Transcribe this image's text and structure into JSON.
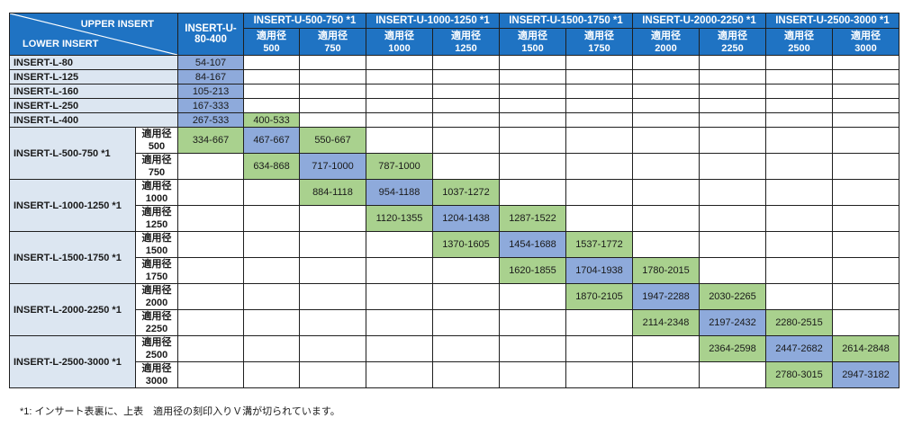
{
  "header": {
    "corner_upper": "UPPER INSERT",
    "corner_lower": "LOWER INSERT",
    "u80_line1": "INSERT-U-",
    "u80_line2": "80-400",
    "groups": [
      "INSERT-U-500-750 *1",
      "INSERT-U-1000-1250 *1",
      "INSERT-U-1500-1750 *1",
      "INSERT-U-2000-2250 *1",
      "INSERT-U-2500-3000 *1"
    ],
    "sub_kanji": "適用径",
    "sub_sizes": [
      "500",
      "750",
      "1000",
      "1250",
      "1500",
      "1750",
      "2000",
      "2250",
      "2500",
      "3000"
    ]
  },
  "single_rows": [
    {
      "label": "INSERT-L-80",
      "cells": [
        {
          "v": "54-107",
          "c": "blue"
        },
        {
          "v": "",
          "c": ""
        },
        {
          "v": "",
          "c": ""
        },
        {
          "v": "",
          "c": ""
        },
        {
          "v": "",
          "c": ""
        },
        {
          "v": "",
          "c": ""
        },
        {
          "v": "",
          "c": ""
        },
        {
          "v": "",
          "c": ""
        },
        {
          "v": "",
          "c": ""
        },
        {
          "v": "",
          "c": ""
        },
        {
          "v": "",
          "c": ""
        }
      ]
    },
    {
      "label": "INSERT-L-125",
      "cells": [
        {
          "v": "84-167",
          "c": "blue"
        },
        {
          "v": "",
          "c": ""
        },
        {
          "v": "",
          "c": ""
        },
        {
          "v": "",
          "c": ""
        },
        {
          "v": "",
          "c": ""
        },
        {
          "v": "",
          "c": ""
        },
        {
          "v": "",
          "c": ""
        },
        {
          "v": "",
          "c": ""
        },
        {
          "v": "",
          "c": ""
        },
        {
          "v": "",
          "c": ""
        },
        {
          "v": "",
          "c": ""
        }
      ]
    },
    {
      "label": "INSERT-L-160",
      "cells": [
        {
          "v": "105-213",
          "c": "blue"
        },
        {
          "v": "",
          "c": ""
        },
        {
          "v": "",
          "c": ""
        },
        {
          "v": "",
          "c": ""
        },
        {
          "v": "",
          "c": ""
        },
        {
          "v": "",
          "c": ""
        },
        {
          "v": "",
          "c": ""
        },
        {
          "v": "",
          "c": ""
        },
        {
          "v": "",
          "c": ""
        },
        {
          "v": "",
          "c": ""
        },
        {
          "v": "",
          "c": ""
        }
      ]
    },
    {
      "label": "INSERT-L-250",
      "cells": [
        {
          "v": "167-333",
          "c": "blue"
        },
        {
          "v": "",
          "c": ""
        },
        {
          "v": "",
          "c": ""
        },
        {
          "v": "",
          "c": ""
        },
        {
          "v": "",
          "c": ""
        },
        {
          "v": "",
          "c": ""
        },
        {
          "v": "",
          "c": ""
        },
        {
          "v": "",
          "c": ""
        },
        {
          "v": "",
          "c": ""
        },
        {
          "v": "",
          "c": ""
        },
        {
          "v": "",
          "c": ""
        }
      ]
    },
    {
      "label": "INSERT-L-400",
      "cells": [
        {
          "v": "267-533",
          "c": "blue"
        },
        {
          "v": "400-533",
          "c": "green"
        },
        {
          "v": "",
          "c": ""
        },
        {
          "v": "",
          "c": ""
        },
        {
          "v": "",
          "c": ""
        },
        {
          "v": "",
          "c": ""
        },
        {
          "v": "",
          "c": ""
        },
        {
          "v": "",
          "c": ""
        },
        {
          "v": "",
          "c": ""
        },
        {
          "v": "",
          "c": ""
        },
        {
          "v": "",
          "c": ""
        }
      ]
    }
  ],
  "group_rows": [
    {
      "label": "INSERT-L-500-750 *1",
      "subs": [
        {
          "size": "500",
          "cells": [
            {
              "v": "334-667",
              "c": "green"
            },
            {
              "v": "467-667",
              "c": "blue"
            },
            {
              "v": "550-667",
              "c": "green"
            },
            {
              "v": "",
              "c": ""
            },
            {
              "v": "",
              "c": ""
            },
            {
              "v": "",
              "c": ""
            },
            {
              "v": "",
              "c": ""
            },
            {
              "v": "",
              "c": ""
            },
            {
              "v": "",
              "c": ""
            },
            {
              "v": "",
              "c": ""
            },
            {
              "v": "",
              "c": ""
            }
          ]
        },
        {
          "size": "750",
          "cells": [
            {
              "v": "",
              "c": ""
            },
            {
              "v": "634-868",
              "c": "green"
            },
            {
              "v": "717-1000",
              "c": "blue"
            },
            {
              "v": "787-1000",
              "c": "green"
            },
            {
              "v": "",
              "c": ""
            },
            {
              "v": "",
              "c": ""
            },
            {
              "v": "",
              "c": ""
            },
            {
              "v": "",
              "c": ""
            },
            {
              "v": "",
              "c": ""
            },
            {
              "v": "",
              "c": ""
            },
            {
              "v": "",
              "c": ""
            }
          ]
        }
      ]
    },
    {
      "label": "INSERT-L-1000-1250 *1",
      "subs": [
        {
          "size": "1000",
          "cells": [
            {
              "v": "",
              "c": ""
            },
            {
              "v": "",
              "c": ""
            },
            {
              "v": "884-1118",
              "c": "green"
            },
            {
              "v": "954-1188",
              "c": "blue"
            },
            {
              "v": "1037-1272",
              "c": "green"
            },
            {
              "v": "",
              "c": ""
            },
            {
              "v": "",
              "c": ""
            },
            {
              "v": "",
              "c": ""
            },
            {
              "v": "",
              "c": ""
            },
            {
              "v": "",
              "c": ""
            },
            {
              "v": "",
              "c": ""
            }
          ]
        },
        {
          "size": "1250",
          "cells": [
            {
              "v": "",
              "c": ""
            },
            {
              "v": "",
              "c": ""
            },
            {
              "v": "",
              "c": ""
            },
            {
              "v": "1120-1355",
              "c": "green"
            },
            {
              "v": "1204-1438",
              "c": "blue"
            },
            {
              "v": "1287-1522",
              "c": "green"
            },
            {
              "v": "",
              "c": ""
            },
            {
              "v": "",
              "c": ""
            },
            {
              "v": "",
              "c": ""
            },
            {
              "v": "",
              "c": ""
            },
            {
              "v": "",
              "c": ""
            }
          ]
        }
      ]
    },
    {
      "label": "INSERT-L-1500-1750 *1",
      "subs": [
        {
          "size": "1500",
          "cells": [
            {
              "v": "",
              "c": ""
            },
            {
              "v": "",
              "c": ""
            },
            {
              "v": "",
              "c": ""
            },
            {
              "v": "",
              "c": ""
            },
            {
              "v": "1370-1605",
              "c": "green"
            },
            {
              "v": "1454-1688",
              "c": "blue"
            },
            {
              "v": "1537-1772",
              "c": "green"
            },
            {
              "v": "",
              "c": ""
            },
            {
              "v": "",
              "c": ""
            },
            {
              "v": "",
              "c": ""
            },
            {
              "v": "",
              "c": ""
            }
          ]
        },
        {
          "size": "1750",
          "cells": [
            {
              "v": "",
              "c": ""
            },
            {
              "v": "",
              "c": ""
            },
            {
              "v": "",
              "c": ""
            },
            {
              "v": "",
              "c": ""
            },
            {
              "v": "",
              "c": ""
            },
            {
              "v": "1620-1855",
              "c": "green"
            },
            {
              "v": "1704-1938",
              "c": "blue"
            },
            {
              "v": "1780-2015",
              "c": "green"
            },
            {
              "v": "",
              "c": ""
            },
            {
              "v": "",
              "c": ""
            },
            {
              "v": "",
              "c": ""
            }
          ]
        }
      ]
    },
    {
      "label": "INSERT-L-2000-2250 *1",
      "subs": [
        {
          "size": "2000",
          "cells": [
            {
              "v": "",
              "c": ""
            },
            {
              "v": "",
              "c": ""
            },
            {
              "v": "",
              "c": ""
            },
            {
              "v": "",
              "c": ""
            },
            {
              "v": "",
              "c": ""
            },
            {
              "v": "",
              "c": ""
            },
            {
              "v": "1870-2105",
              "c": "green"
            },
            {
              "v": "1947-2288",
              "c": "blue"
            },
            {
              "v": "2030-2265",
              "c": "green"
            },
            {
              "v": "",
              "c": ""
            },
            {
              "v": "",
              "c": ""
            }
          ]
        },
        {
          "size": "2250",
          "cells": [
            {
              "v": "",
              "c": ""
            },
            {
              "v": "",
              "c": ""
            },
            {
              "v": "",
              "c": ""
            },
            {
              "v": "",
              "c": ""
            },
            {
              "v": "",
              "c": ""
            },
            {
              "v": "",
              "c": ""
            },
            {
              "v": "",
              "c": ""
            },
            {
              "v": "2114-2348",
              "c": "green"
            },
            {
              "v": "2197-2432",
              "c": "blue"
            },
            {
              "v": "2280-2515",
              "c": "green"
            },
            {
              "v": "",
              "c": ""
            }
          ]
        }
      ]
    },
    {
      "label": "INSERT-L-2500-3000 *1",
      "subs": [
        {
          "size": "2500",
          "cells": [
            {
              "v": "",
              "c": ""
            },
            {
              "v": "",
              "c": ""
            },
            {
              "v": "",
              "c": ""
            },
            {
              "v": "",
              "c": ""
            },
            {
              "v": "",
              "c": ""
            },
            {
              "v": "",
              "c": ""
            },
            {
              "v": "",
              "c": ""
            },
            {
              "v": "",
              "c": ""
            },
            {
              "v": "2364-2598",
              "c": "green"
            },
            {
              "v": "2447-2682",
              "c": "blue"
            },
            {
              "v": "2614-2848",
              "c": "green"
            }
          ]
        },
        {
          "size": "3000",
          "cells": [
            {
              "v": "",
              "c": ""
            },
            {
              "v": "",
              "c": ""
            },
            {
              "v": "",
              "c": ""
            },
            {
              "v": "",
              "c": ""
            },
            {
              "v": "",
              "c": ""
            },
            {
              "v": "",
              "c": ""
            },
            {
              "v": "",
              "c": ""
            },
            {
              "v": "",
              "c": ""
            },
            {
              "v": "",
              "c": ""
            },
            {
              "v": "2780-3015",
              "c": "green"
            },
            {
              "v": "2947-3182",
              "c": "blue"
            }
          ]
        }
      ]
    }
  ],
  "footnote": "*1: インサート表裏に、上表　適用径の刻印入りＶ溝が切られています。",
  "colors": {
    "header": "#1f73c3",
    "row_label": "#dce6f1",
    "blue": "#8eaadb",
    "green": "#a9d18e"
  }
}
